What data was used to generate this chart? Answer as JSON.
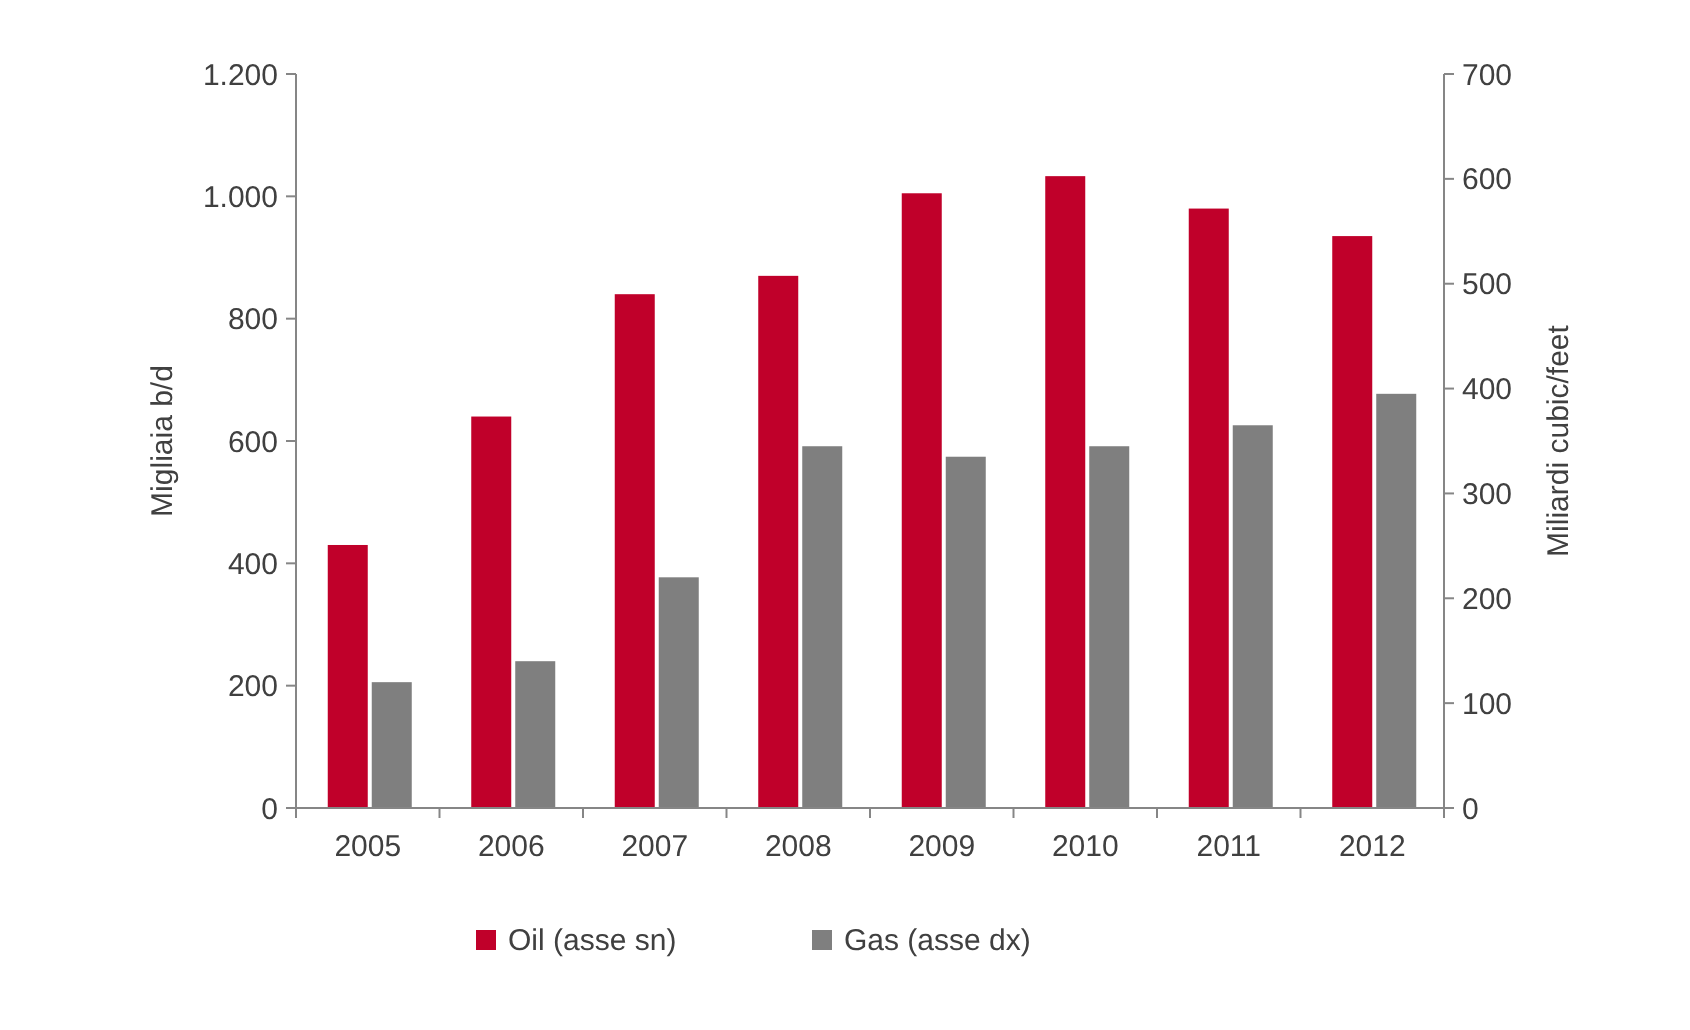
{
  "chart_data": {
    "type": "bar",
    "ylabel": "Migliaia b/d",
    "y2label": "Miliardi cubic/feet",
    "categories": [
      "2005",
      "2006",
      "2007",
      "2008",
      "2009",
      "2010",
      "2011",
      "2012"
    ],
    "series": [
      {
        "name": "Oil (asse sn)",
        "color": "#c0002a",
        "values": [
          430,
          640,
          840,
          870,
          1005,
          1033,
          980,
          935
        ]
      },
      {
        "name": "Gas (asse dx)",
        "color": "#7f7f7f",
        "axis": "y2",
        "values": [
          120,
          140,
          220,
          345,
          335,
          345,
          365,
          395
        ]
      }
    ],
    "ylim": [
      0,
      1200
    ],
    "yticks": [
      0,
      200,
      400,
      600,
      800,
      {
        "value": 1000,
        "label": "1.000"
      },
      {
        "value": 1200,
        "label": "1.200"
      }
    ],
    "y2lim": [
      0,
      700
    ],
    "y2ticks": [
      0,
      100,
      200,
      300,
      400,
      500,
      600,
      700
    ],
    "grid": false,
    "legend": "bottom"
  }
}
